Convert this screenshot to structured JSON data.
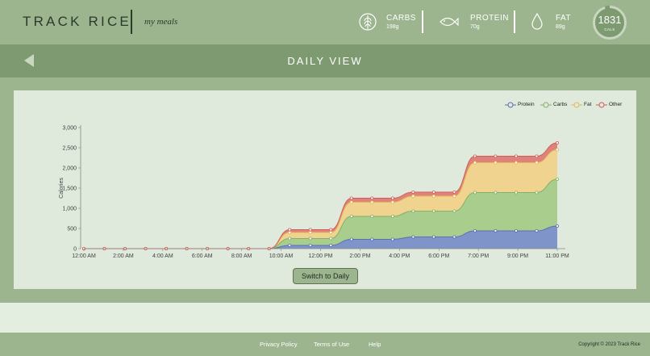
{
  "header": {
    "brand": "TRACK RICE",
    "subtitle": "my meals",
    "macros": [
      {
        "label": "CARBS",
        "value": "198g",
        "icon": "wheat-icon"
      },
      {
        "label": "PROTEIN",
        "value": "70g",
        "icon": "fish-icon"
      },
      {
        "label": "FAT",
        "value": "89g",
        "icon": "drop-icon"
      }
    ],
    "calories": {
      "value": "1831",
      "unit": "CALS",
      "ring_progress": 0.95
    }
  },
  "nav": {
    "title": "DAILY VIEW",
    "back_icon": "back-arrow-icon"
  },
  "button": {
    "switch_label": "Switch to Daily"
  },
  "footer": {
    "links": [
      "Privacy Policy",
      "Terms of Use",
      "Help"
    ],
    "copyright": "Copyright © 2023 Track Rice"
  },
  "colors": {
    "protein": "#7f94c8",
    "carbs": "#a9cd8d",
    "fat": "#efd38f",
    "other": "#e0827c",
    "background": "#9db58f",
    "navbar": "#7e9a71"
  },
  "chart_data": {
    "type": "area",
    "stacked": true,
    "ylabel": "Calories",
    "xlabel": "",
    "ylim": [
      0,
      3000
    ],
    "yticks": [
      "0",
      "500",
      "1,000",
      "1,500",
      "2,000",
      "2,500",
      "3,000"
    ],
    "xticks": [
      "12:00 AM",
      "2:00 AM",
      "4:00 AM",
      "6:00 AM",
      "8:00 AM",
      "10:00 AM",
      "12:00 PM",
      "2:00 PM",
      "4:00 PM",
      "6:00 PM",
      "7:00 PM",
      "9:00 PM",
      "11:00 PM"
    ],
    "x_hours": [
      0,
      1,
      2,
      3,
      4,
      5,
      6,
      7,
      8,
      9,
      10,
      11,
      12,
      13,
      14,
      15,
      16,
      17,
      18,
      19,
      20,
      21,
      22,
      23
    ],
    "series": [
      {
        "name": "Protein",
        "values": [
          0,
          0,
          0,
          0,
          0,
          0,
          0,
          0,
          0,
          0,
          80,
          80,
          80,
          230,
          230,
          230,
          290,
          290,
          290,
          440,
          440,
          440,
          440,
          560
        ]
      },
      {
        "name": "Carbs",
        "values": [
          0,
          0,
          0,
          0,
          0,
          0,
          0,
          0,
          0,
          0,
          250,
          250,
          250,
          800,
          800,
          800,
          930,
          930,
          930,
          1390,
          1390,
          1390,
          1390,
          1720
        ]
      },
      {
        "name": "Fat",
        "values": [
          0,
          0,
          0,
          0,
          0,
          0,
          0,
          0,
          0,
          0,
          400,
          400,
          400,
          1150,
          1150,
          1150,
          1300,
          1300,
          1300,
          2130,
          2130,
          2130,
          2130,
          2450
        ]
      },
      {
        "name": "Other",
        "values": [
          0,
          0,
          0,
          0,
          0,
          0,
          0,
          0,
          0,
          0,
          470,
          470,
          470,
          1250,
          1250,
          1250,
          1400,
          1400,
          1400,
          2290,
          2290,
          2290,
          2290,
          2620
        ]
      }
    ],
    "legend_position": "top-right",
    "grid": false
  }
}
